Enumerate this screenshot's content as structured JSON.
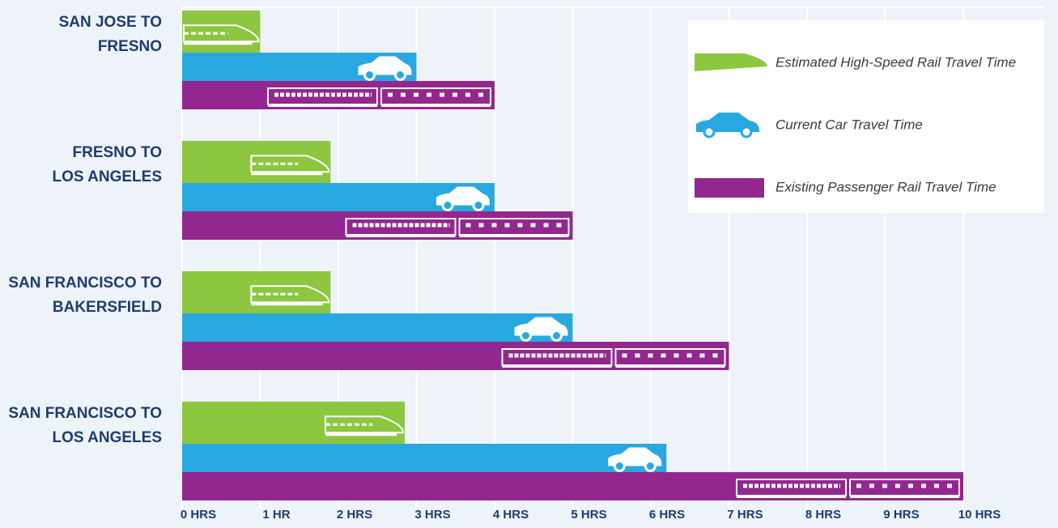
{
  "chart_data": {
    "type": "bar",
    "orientation": "horizontal",
    "categories": [
      [
        "SAN JOSE TO",
        "FRESNO"
      ],
      [
        "FRESNO TO",
        "LOS ANGELES"
      ],
      [
        "SAN FRANCISCO TO",
        "BAKERSFIELD"
      ],
      [
        "SAN FRANCISCO TO",
        "LOS ANGELES"
      ]
    ],
    "series": [
      {
        "name": "Estimated High-Speed Rail Travel Time",
        "color": "#8dc63f",
        "values": [
          1.0,
          1.9,
          1.9,
          2.85
        ]
      },
      {
        "name": "Current Car Travel Time",
        "color": "#29a8e0",
        "values": [
          3.0,
          4.0,
          5.0,
          6.2
        ]
      },
      {
        "name": "Existing Passenger Rail Travel Time",
        "color": "#92278f",
        "values": [
          4.0,
          5.0,
          7.0,
          10.0
        ]
      }
    ],
    "xlim": [
      0,
      11
    ],
    "xticks": [
      {
        "value": 0,
        "label": "0 HRS"
      },
      {
        "value": 1,
        "label": "1 HR"
      },
      {
        "value": 2,
        "label": "2 HRS"
      },
      {
        "value": 3,
        "label": "3 HRS"
      },
      {
        "value": 4,
        "label": "4 HRS"
      },
      {
        "value": 5,
        "label": "5 HRS"
      },
      {
        "value": 6,
        "label": "6 HRS"
      },
      {
        "value": 7,
        "label": "7 HRS"
      },
      {
        "value": 8,
        "label": "8 HRS"
      },
      {
        "value": 9,
        "label": "9 HRS"
      },
      {
        "value": 10,
        "label": "10 HRS"
      }
    ],
    "grid": true,
    "legend": "upper right"
  }
}
